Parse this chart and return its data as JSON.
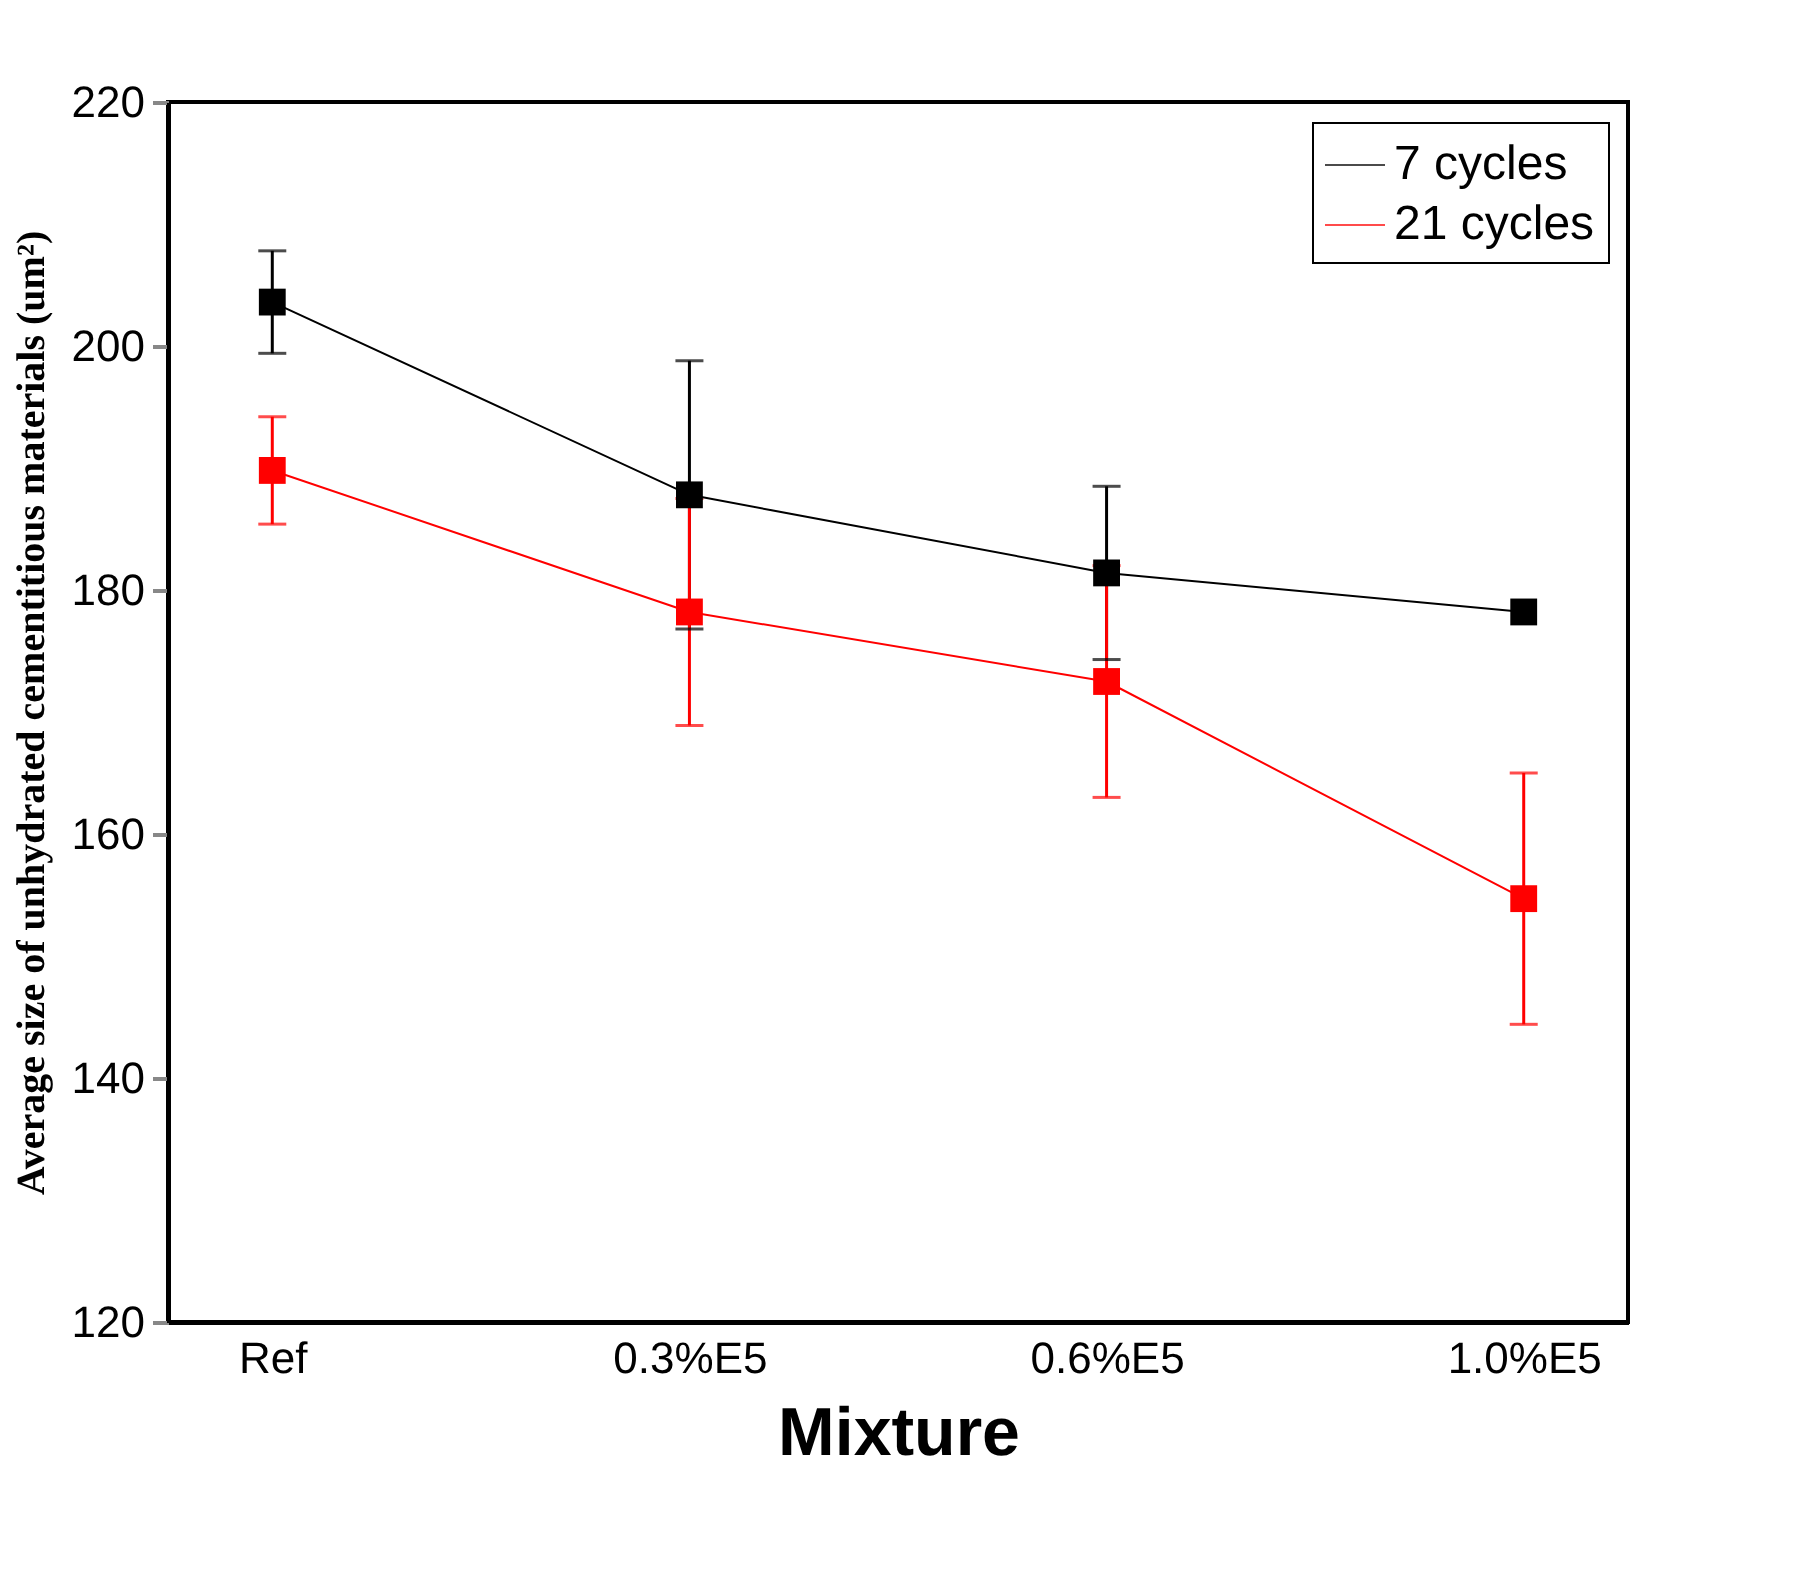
{
  "chart_data": {
    "type": "line",
    "xlabel": "Mixture",
    "ylabel": "Average size of unhydrated cementitious materials (um²)",
    "categories": [
      "Ref",
      "0.3%E5",
      "0.6%E5",
      "1.0%E5"
    ],
    "series": [
      {
        "name": "7 cycles",
        "color": "#000000",
        "values": [
          203.6,
          187.8,
          181.4,
          178.2
        ],
        "errors": [
          4.2,
          11,
          7.1,
          null
        ]
      },
      {
        "name": "21 cycles",
        "color": "#ff0000",
        "values": [
          189.8,
          178.2,
          172.5,
          154.7
        ],
        "errors": [
          4.4,
          9.3,
          9.5,
          10.3
        ]
      }
    ],
    "ylim": [
      120,
      220
    ],
    "yticks": [
      120,
      140,
      160,
      180,
      200,
      220
    ],
    "grid": false,
    "legend": "top right",
    "marker": "square",
    "line_style": "solid"
  }
}
